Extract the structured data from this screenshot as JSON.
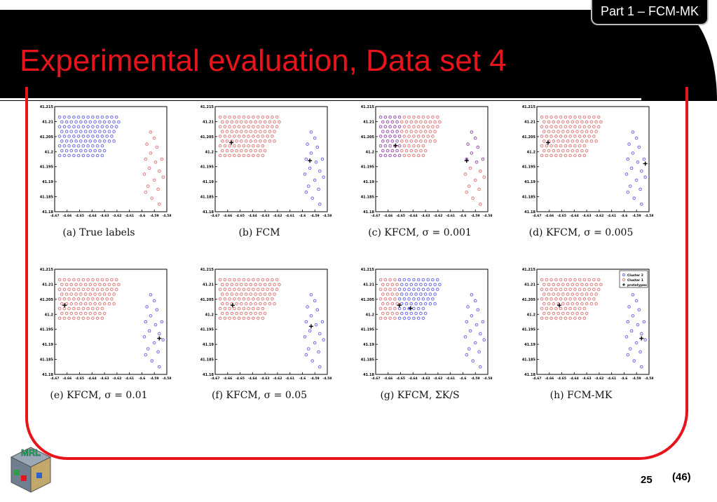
{
  "header": {
    "part_label": "Part 1 – FCM-MK",
    "title": "Experimental evaluation, Data set 4"
  },
  "colors": {
    "accent": "#e8141b",
    "cluster2": "#6a6ae6",
    "cluster1": "#e07a7a",
    "prototype": "#000000"
  },
  "axis_labels": {
    "x_ticks": [
      "-4.67",
      "-4.66",
      "-4.65",
      "-4.64",
      "-4.63",
      "-4.62",
      "-4.61",
      "-4.6",
      "-4.59",
      "-4.58"
    ],
    "y_ticks": [
      "41.215",
      "41.21",
      "41.205",
      "41.2",
      "41.195",
      "41.19",
      "41.185",
      "41.18"
    ]
  },
  "legend": {
    "cluster2": "Cluster 2",
    "cluster1": "Cluster 1",
    "prototype": "prototypes"
  },
  "logo_text": "MRL",
  "footer": {
    "page": "25",
    "total": "(46)"
  },
  "chart_data": [
    {
      "type": "scatter",
      "caption_prefix": "(a)",
      "caption": "True labels",
      "variant": "true",
      "xlim": [
        -4.67,
        -4.58
      ],
      "ylim": [
        41.18,
        41.215
      ]
    },
    {
      "type": "scatter",
      "caption_prefix": "(b)",
      "caption": "FCM",
      "variant": "fcm",
      "xlim": [
        -4.67,
        -4.58
      ],
      "ylim": [
        41.18,
        41.215
      ],
      "prototypes": [
        [
          -4.657,
          41.203
        ],
        [
          -4.594,
          41.197
        ]
      ]
    },
    {
      "type": "scatter",
      "caption_prefix": "(c)",
      "caption": "KFCM, σ = 0.001",
      "variant": "kfcm001",
      "xlim": [
        -4.67,
        -4.58
      ],
      "ylim": [
        41.18,
        41.215
      ],
      "prototypes": [
        [
          -4.654,
          41.202
        ],
        [
          -4.597,
          41.197
        ]
      ]
    },
    {
      "type": "scatter",
      "caption_prefix": "(d)",
      "caption": "KFCM, σ = 0.005",
      "variant": "fcm",
      "xlim": [
        -4.67,
        -4.58
      ],
      "ylim": [
        41.18,
        41.215
      ],
      "prototypes": [
        [
          -4.661,
          41.203
        ],
        [
          -4.583,
          41.196
        ]
      ]
    },
    {
      "type": "scatter",
      "caption_prefix": "(e)",
      "caption": "KFCM, σ = 0.01",
      "variant": "fcm",
      "xlim": [
        -4.67,
        -4.58
      ],
      "ylim": [
        41.18,
        41.215
      ],
      "prototypes": [
        [
          -4.662,
          41.203
        ],
        [
          -4.586,
          41.192
        ]
      ]
    },
    {
      "type": "scatter",
      "caption_prefix": "(f)",
      "caption": "KFCM, σ = 0.05",
      "variant": "fcm",
      "xlim": [
        -4.67,
        -4.58
      ],
      "ylim": [
        41.18,
        41.215
      ],
      "prototypes": [
        [
          -4.656,
          41.203
        ],
        [
          -4.593,
          41.196
        ]
      ]
    },
    {
      "type": "scatter",
      "caption_prefix": "(g)",
      "caption": "KFCM, ΣK/S",
      "variant": "kfcmsum",
      "xlim": [
        -4.67,
        -4.58
      ],
      "ylim": [
        41.18,
        41.215
      ],
      "prototypes": [
        [
          -4.651,
          41.203
        ],
        [
          -4.642,
          41.202
        ]
      ]
    },
    {
      "type": "scatter",
      "caption_prefix": "(h)",
      "caption": "FCM-MK",
      "variant": "fcm",
      "xlim": [
        -4.67,
        -4.58
      ],
      "ylim": [
        41.18,
        41.215
      ],
      "prototypes": [
        [
          -4.652,
          41.203
        ],
        [
          -4.586,
          41.192
        ]
      ],
      "legend": true
    }
  ]
}
